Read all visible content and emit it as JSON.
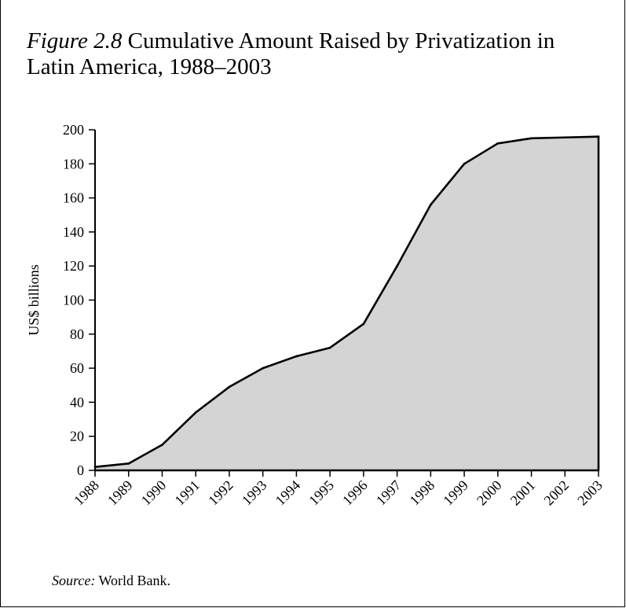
{
  "figure": {
    "label": "Figure 2.8",
    "title": "Cumulative Amount Raised by Privatization in Latin America, 1988–2003"
  },
  "source": {
    "label": "Source:",
    "text": "World Bank."
  },
  "chart_data": {
    "type": "area",
    "x": [
      "1988",
      "1989",
      "1990",
      "1991",
      "1992",
      "1993",
      "1994",
      "1995",
      "1996",
      "1997",
      "1998",
      "1999",
      "2000",
      "2001",
      "2002",
      "2003"
    ],
    "series": [
      {
        "values": [
          2,
          4,
          15,
          34,
          49,
          60,
          67,
          72,
          86,
          120,
          156,
          180,
          192,
          195,
          195.5,
          196
        ]
      }
    ],
    "ylabel": "US$ billions",
    "xlabel": "",
    "ylim": [
      0,
      200
    ],
    "yticks": [
      0,
      20,
      40,
      60,
      80,
      100,
      120,
      140,
      160,
      180,
      200
    ],
    "fill_color": "#d4d4d4",
    "line_color": "#000000",
    "grid": false,
    "legend": "none"
  }
}
